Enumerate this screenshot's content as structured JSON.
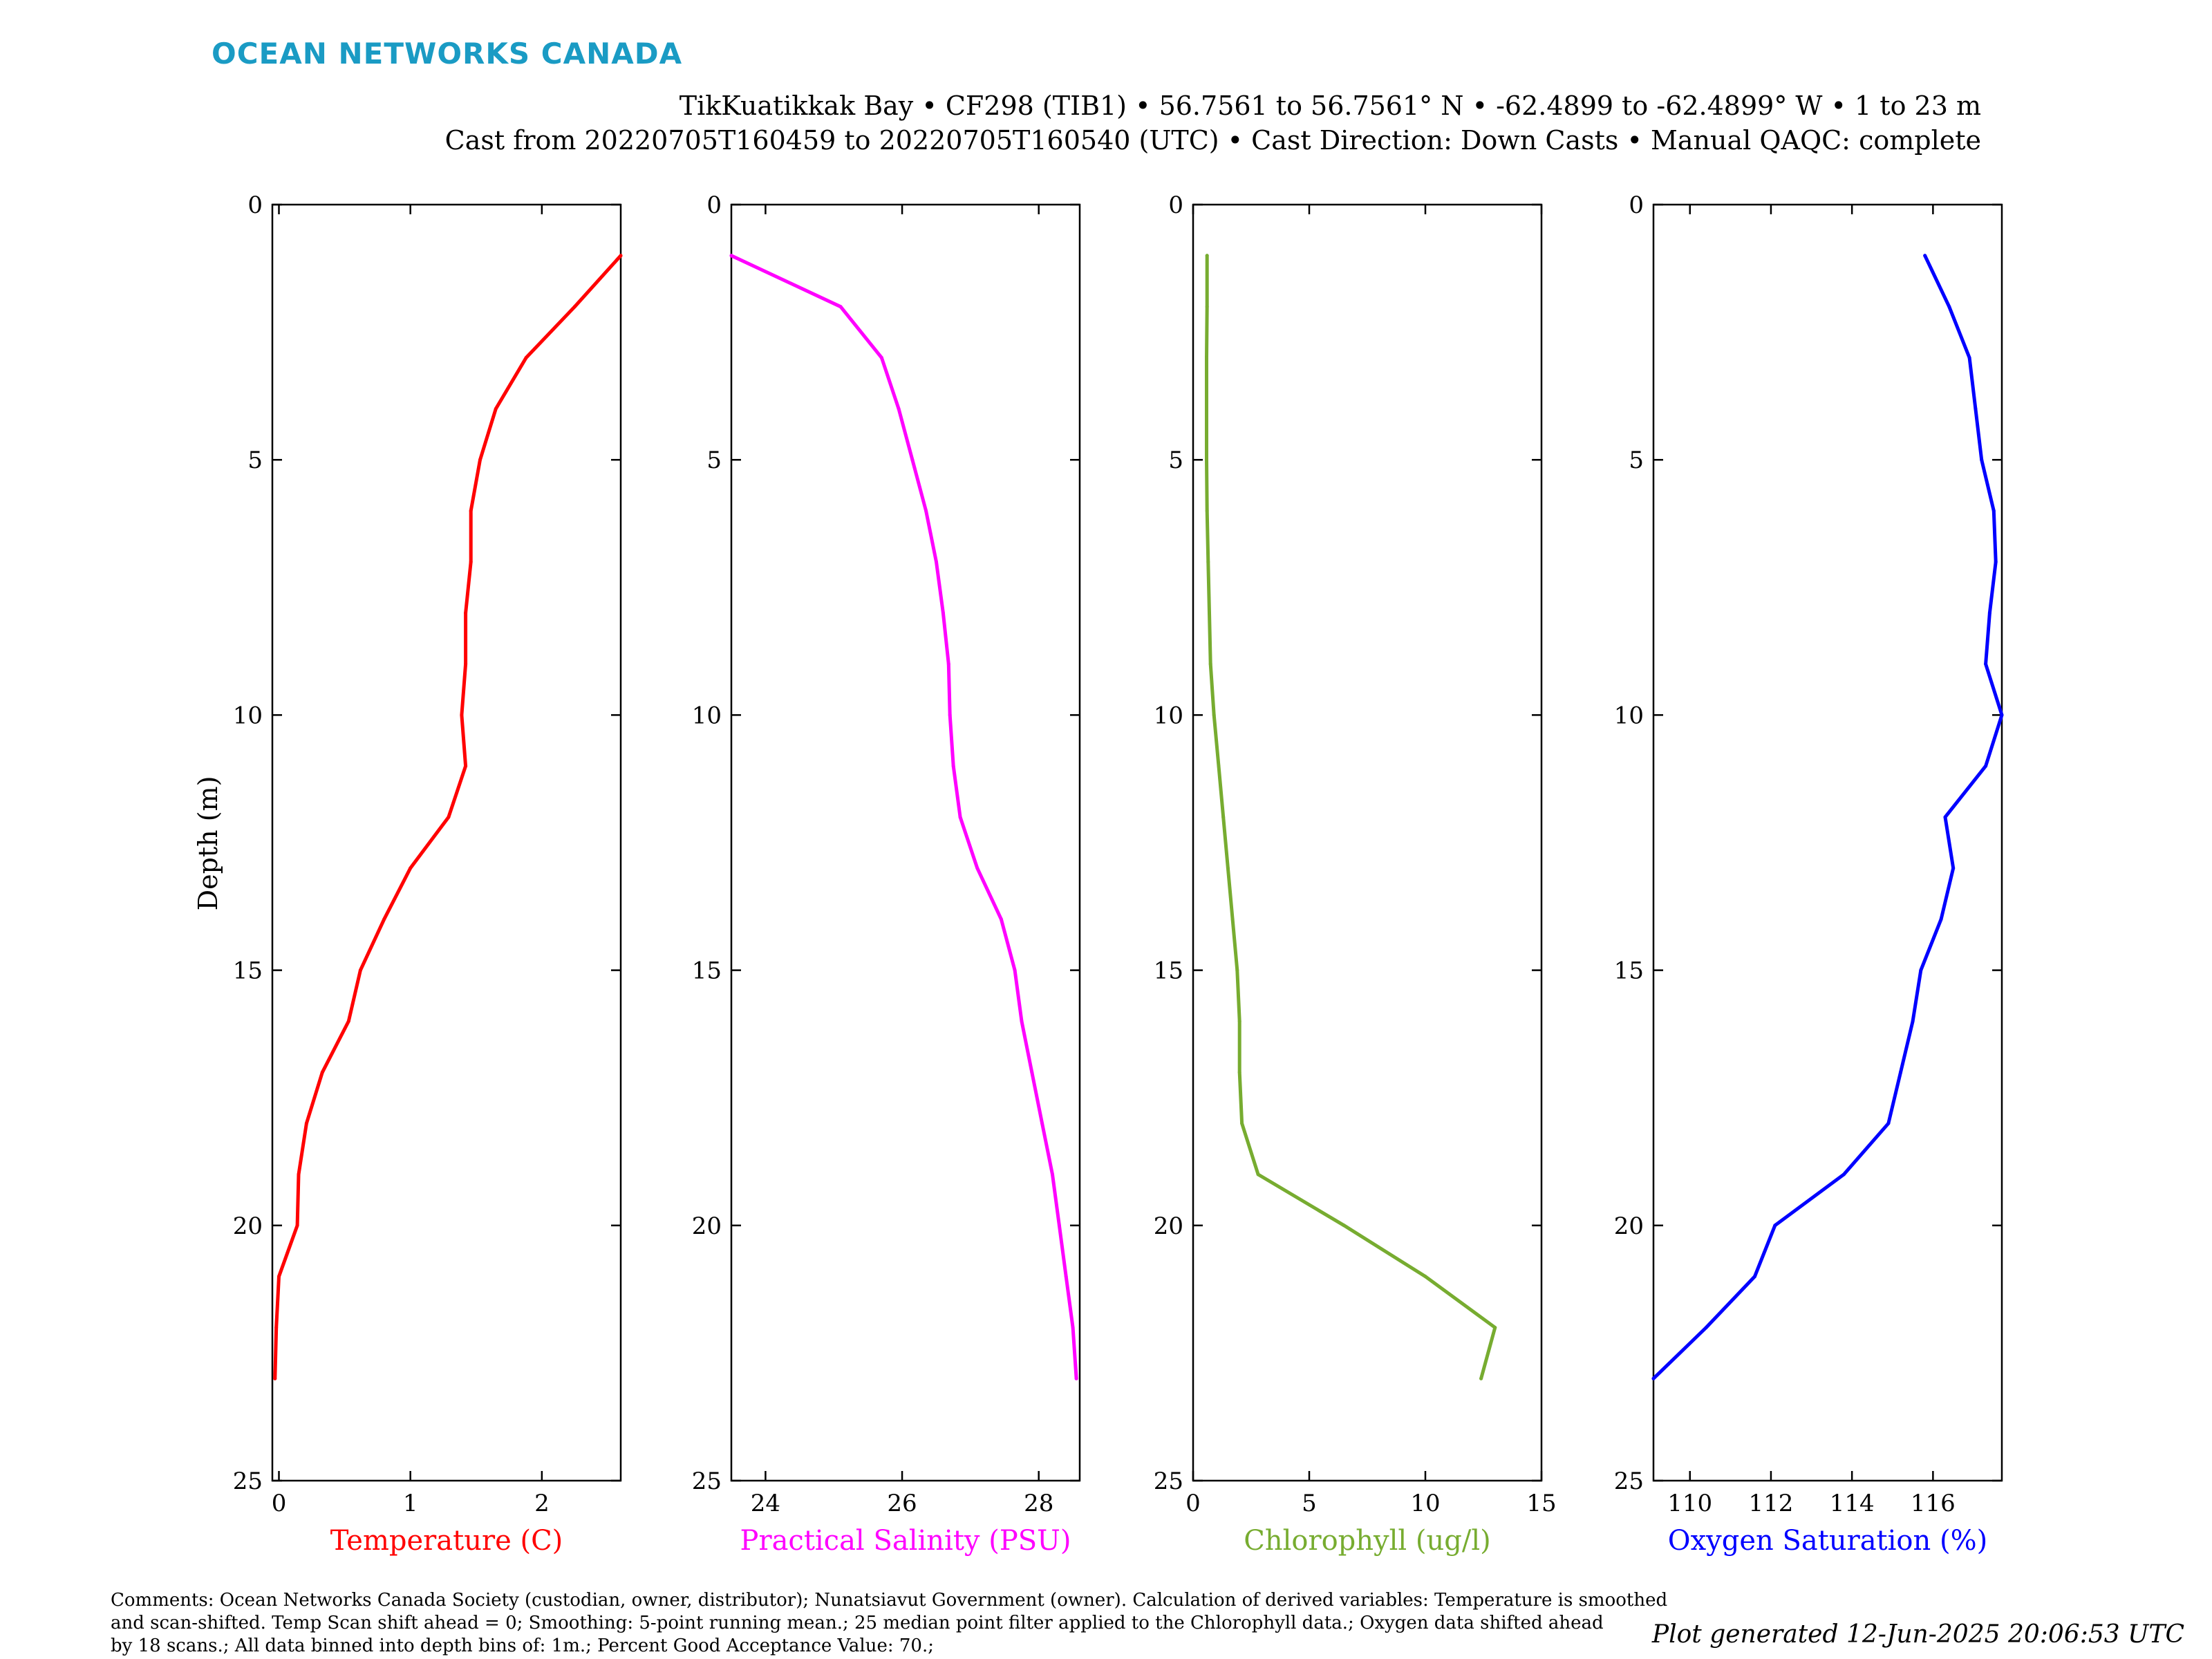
{
  "header": {
    "brand": "OCEAN NETWORKS CANADA",
    "title_line1": "TikKuatikkak Bay • CF298 (TIB1) • 56.7561 to 56.7561° N • -62.4899 to -62.4899° W • 1 to 23 m",
    "title_line2": "Cast from 20220705T160459 to 20220705T160540 (UTC) • Cast Direction: Down Casts • Manual QAQC: complete"
  },
  "footer": {
    "comments_line1": "Comments: Ocean Networks Canada Society (custodian, owner, distributor); Nunatsiavut Government (owner). Calculation of derived variables: Temperature is smoothed",
    "comments_line2": "and scan-shifted. Temp Scan shift ahead = 0; Smoothing: 5-point running mean.; 25 median point filter applied to the Chlorophyll data.; Oxygen data shifted ahead",
    "comments_line3": "by 18 scans.; All data binned into depth bins of: 1m.; Percent Good Acceptance Value: 70.;",
    "generated": "Plot generated 12-Jun-2025 20:06:53 UTC"
  },
  "colors": {
    "brand": "#1a9bc4",
    "temperature": "#ff0000",
    "salinity": "#ff00ff",
    "chlorophyll": "#77ac30",
    "oxygen": "#0000ff"
  },
  "chart_data": [
    {
      "type": "line",
      "xlabel": "Temperature (C)",
      "ylabel": "Depth (m)",
      "xlim": [
        -0.05,
        2.6
      ],
      "ylim": [
        0,
        25
      ],
      "y_reversed": true,
      "xticks": [
        0,
        1,
        2
      ],
      "yticks": [
        0,
        5,
        10,
        15,
        20,
        25
      ],
      "series": [
        {
          "x": [
            2.6,
            2.25,
            1.88,
            1.65,
            1.53,
            1.46,
            1.46,
            1.42,
            1.42,
            1.39,
            1.42,
            1.29,
            1.0,
            0.8,
            0.62,
            0.53,
            0.33,
            0.21,
            0.15,
            0.14,
            0.0,
            -0.02,
            -0.03
          ],
          "y": [
            1,
            2,
            3,
            4,
            5,
            6,
            7,
            8,
            9,
            10,
            11,
            12,
            13,
            14,
            15,
            16,
            17,
            18,
            19,
            20,
            21,
            22,
            23
          ]
        }
      ]
    },
    {
      "type": "line",
      "xlabel": "Practical Salinity (PSU)",
      "xlim": [
        23.5,
        28.6
      ],
      "ylim": [
        0,
        25
      ],
      "y_reversed": true,
      "xticks": [
        24,
        26,
        28
      ],
      "yticks": [
        0,
        5,
        10,
        15,
        20,
        25
      ],
      "series": [
        {
          "x": [
            23.5,
            25.1,
            25.7,
            25.95,
            26.15,
            26.35,
            26.5,
            26.6,
            26.68,
            26.7,
            26.75,
            26.85,
            27.1,
            27.45,
            27.65,
            27.75,
            27.9,
            28.05,
            28.2,
            28.3,
            28.4,
            28.5,
            28.55
          ],
          "y": [
            1,
            2,
            3,
            4,
            5,
            6,
            7,
            8,
            9,
            10,
            11,
            12,
            13,
            14,
            15,
            16,
            17,
            18,
            19,
            20,
            21,
            22,
            23
          ]
        }
      ]
    },
    {
      "type": "line",
      "xlabel": "Chlorophyll (ug/l)",
      "xlim": [
        0,
        15
      ],
      "ylim": [
        0,
        25
      ],
      "y_reversed": true,
      "xticks": [
        0,
        5,
        10,
        15
      ],
      "yticks": [
        0,
        5,
        10,
        15,
        20,
        25
      ],
      "series": [
        {
          "x": [
            0.6,
            0.6,
            0.58,
            0.58,
            0.58,
            0.6,
            0.65,
            0.7,
            0.75,
            0.9,
            1.1,
            1.3,
            1.5,
            1.7,
            1.9,
            2.0,
            2.0,
            2.1,
            2.8,
            6.5,
            10.0,
            13.0,
            12.4
          ],
          "y": [
            1,
            2,
            3,
            4,
            5,
            6,
            7,
            8,
            9,
            10,
            11,
            12,
            13,
            14,
            15,
            16,
            17,
            18,
            19,
            20,
            21,
            22,
            23
          ]
        }
      ]
    },
    {
      "type": "line",
      "xlabel": "Oxygen Saturation (%)",
      "xlim": [
        109.1,
        117.7
      ],
      "ylim": [
        0,
        25
      ],
      "y_reversed": true,
      "xticks": [
        110,
        112,
        114,
        116
      ],
      "yticks": [
        0,
        5,
        10,
        15,
        20,
        25
      ],
      "series": [
        {
          "x": [
            115.8,
            116.4,
            116.9,
            117.05,
            117.2,
            117.5,
            117.55,
            117.4,
            117.3,
            117.7,
            117.3,
            116.3,
            116.5,
            116.2,
            115.7,
            115.5,
            115.2,
            114.9,
            113.8,
            112.1,
            111.6,
            110.4,
            109.1
          ],
          "y": [
            1,
            2,
            3,
            4,
            5,
            6,
            7,
            8,
            9,
            10,
            11,
            12,
            13,
            14,
            15,
            16,
            17,
            18,
            19,
            20,
            21,
            22,
            23
          ]
        }
      ]
    }
  ]
}
